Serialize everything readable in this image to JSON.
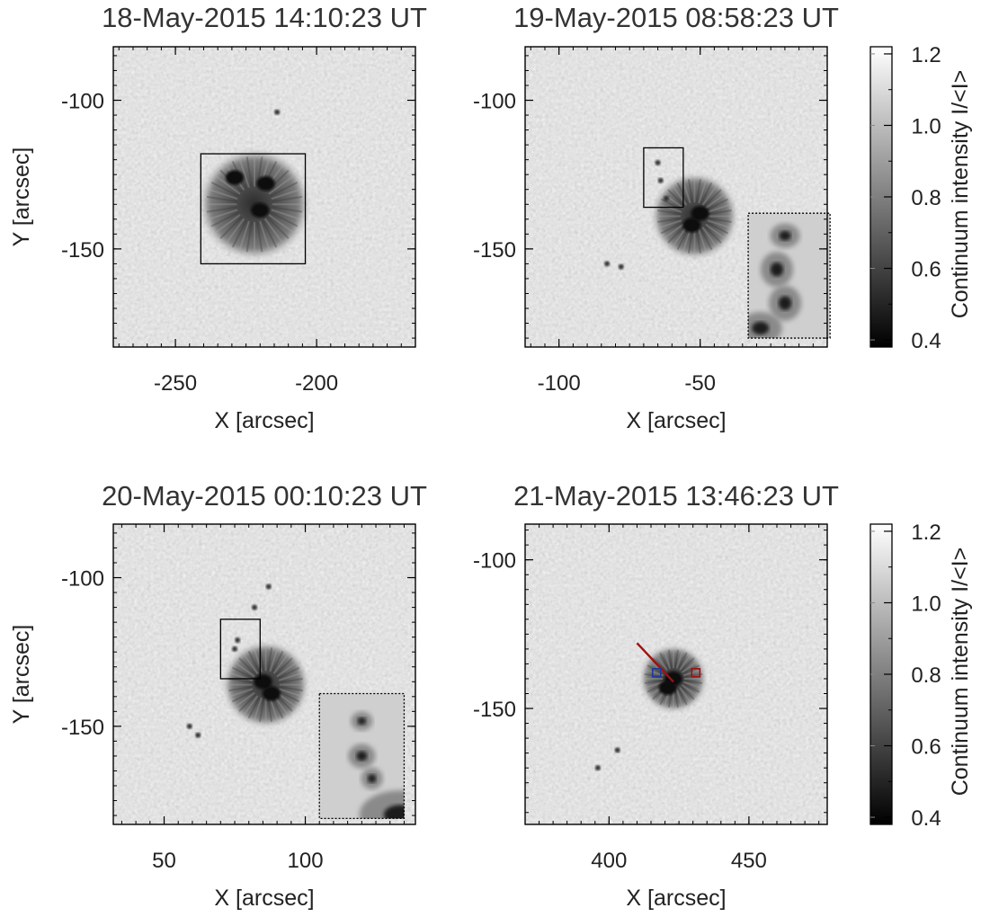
{
  "chart_data": {
    "type": "heatmap",
    "description_quantity": "Continuum intensity I/<I>",
    "panels": [
      {
        "title": "18-May-2015 14:10:23 UT",
        "xlabel": "X [arcsec]",
        "ylabel": "Y [arcsec]",
        "xlim": [
          -272,
          -165
        ],
        "ylim": [
          -183,
          -82
        ],
        "xticks": [
          {
            "value": -250,
            "label": "-250"
          },
          {
            "value": -200,
            "label": "-200"
          }
        ],
        "yticks": [
          {
            "value": -100,
            "label": "-100"
          },
          {
            "value": -150,
            "label": "-150"
          }
        ],
        "minor_step": 5,
        "sunspot": {
          "x": -222,
          "y": -135,
          "radius": 18,
          "umbrae": [
            [
              -229,
              -126
            ],
            [
              -218,
              -128
            ],
            [
              -220,
              -137
            ]
          ]
        },
        "pores": [
          [
            -214,
            -104
          ]
        ],
        "box": {
          "x0": -241,
          "x1": -204,
          "y0": -118,
          "y1": -155
        }
      },
      {
        "title": "19-May-2015 08:58:23 UT",
        "xlabel": "X [arcsec]",
        "ylabel": "",
        "xlim": [
          -112,
          -5
        ],
        "ylim": [
          -183,
          -82
        ],
        "xticks": [
          {
            "value": -100,
            "label": "-100"
          },
          {
            "value": -50,
            "label": "-50"
          }
        ],
        "yticks": [
          {
            "value": -100,
            "label": "-100"
          },
          {
            "value": -150,
            "label": "-150"
          }
        ],
        "minor_step": 5,
        "sunspot": {
          "x": -52,
          "y": -139,
          "radius": 14,
          "umbrae": [
            [
              -50,
              -138
            ],
            [
              -53,
              -142
            ]
          ]
        },
        "pores": [
          [
            -65,
            -121
          ],
          [
            -64,
            -127
          ],
          [
            -62,
            -133
          ],
          [
            -83,
            -155
          ],
          [
            -78,
            -156
          ]
        ],
        "box": {
          "x0": -70,
          "x1": -56,
          "y0": -116,
          "y1": -136
        },
        "inset": {
          "x0": -33,
          "x1": -4,
          "y0": -138,
          "y1": -180
        }
      },
      {
        "title": "20-May-2015 00:10:23 UT",
        "xlabel": "X [arcsec]",
        "ylabel": "Y [arcsec]",
        "xlim": [
          32,
          139
        ],
        "ylim": [
          -183,
          -82
        ],
        "xticks": [
          {
            "value": 50,
            "label": "50"
          },
          {
            "value": 100,
            "label": "100"
          }
        ],
        "yticks": [
          {
            "value": -100,
            "label": "-100"
          },
          {
            "value": -150,
            "label": "-150"
          }
        ],
        "minor_step": 5,
        "sunspot": {
          "x": 86,
          "y": -136,
          "radius": 14,
          "umbrae": [
            [
              85,
              -135
            ],
            [
              88,
              -139
            ]
          ]
        },
        "pores": [
          [
            76,
            -121
          ],
          [
            75,
            -124
          ],
          [
            82,
            -110
          ],
          [
            87,
            -103
          ],
          [
            59,
            -150
          ],
          [
            62,
            -153
          ]
        ],
        "box": {
          "x0": 70,
          "x1": 84,
          "y0": -114,
          "y1": -134
        },
        "inset": {
          "x0": 105,
          "x1": 135,
          "y0": -139,
          "y1": -181
        }
      },
      {
        "title": "21-May-2015 13:46:23 UT",
        "xlabel": "X [arcsec]",
        "ylabel": "",
        "xlim": [
          370,
          478
        ],
        "ylim": [
          -189,
          -88
        ],
        "xticks": [
          {
            "value": 400,
            "label": "400"
          },
          {
            "value": 450,
            "label": "450"
          }
        ],
        "yticks": [
          {
            "value": -100,
            "label": "-100"
          },
          {
            "value": -150,
            "label": "-150"
          }
        ],
        "minor_step": 5,
        "sunspot": {
          "x": 423,
          "y": -140,
          "radius": 11,
          "umbrae": [
            [
              423,
              -140
            ],
            [
              421,
              -143
            ]
          ]
        },
        "pores": [
          [
            396,
            -170
          ],
          [
            403,
            -164
          ]
        ],
        "slit": {
          "x0": 410,
          "y0": -128,
          "x1": 423,
          "y1": -141,
          "color": "#a01010"
        },
        "markers": [
          {
            "x": 417,
            "y": -138,
            "color": "#1a3a9a"
          },
          {
            "x": 431,
            "y": -138,
            "color": "#a01010"
          }
        ]
      }
    ],
    "colorbars": [
      {
        "label": "Continuum intensity I/<I>",
        "range": [
          0.38,
          1.22
        ],
        "ticks": [
          {
            "value": 0.4,
            "label": "0.4"
          },
          {
            "value": 0.6,
            "label": "0.6"
          },
          {
            "value": 0.8,
            "label": "0.8"
          },
          {
            "value": 1.0,
            "label": "1.0"
          },
          {
            "value": 1.2,
            "label": "1.2"
          }
        ],
        "minor_step": 0.1
      },
      {
        "label": "Continuum intensity I/<I>",
        "range": [
          0.38,
          1.22
        ],
        "ticks": [
          {
            "value": 0.4,
            "label": "0.4"
          },
          {
            "value": 0.6,
            "label": "0.6"
          },
          {
            "value": 0.8,
            "label": "0.8"
          },
          {
            "value": 1.0,
            "label": "1.0"
          },
          {
            "value": 1.2,
            "label": "1.2"
          }
        ],
        "minor_step": 0.1
      }
    ]
  }
}
